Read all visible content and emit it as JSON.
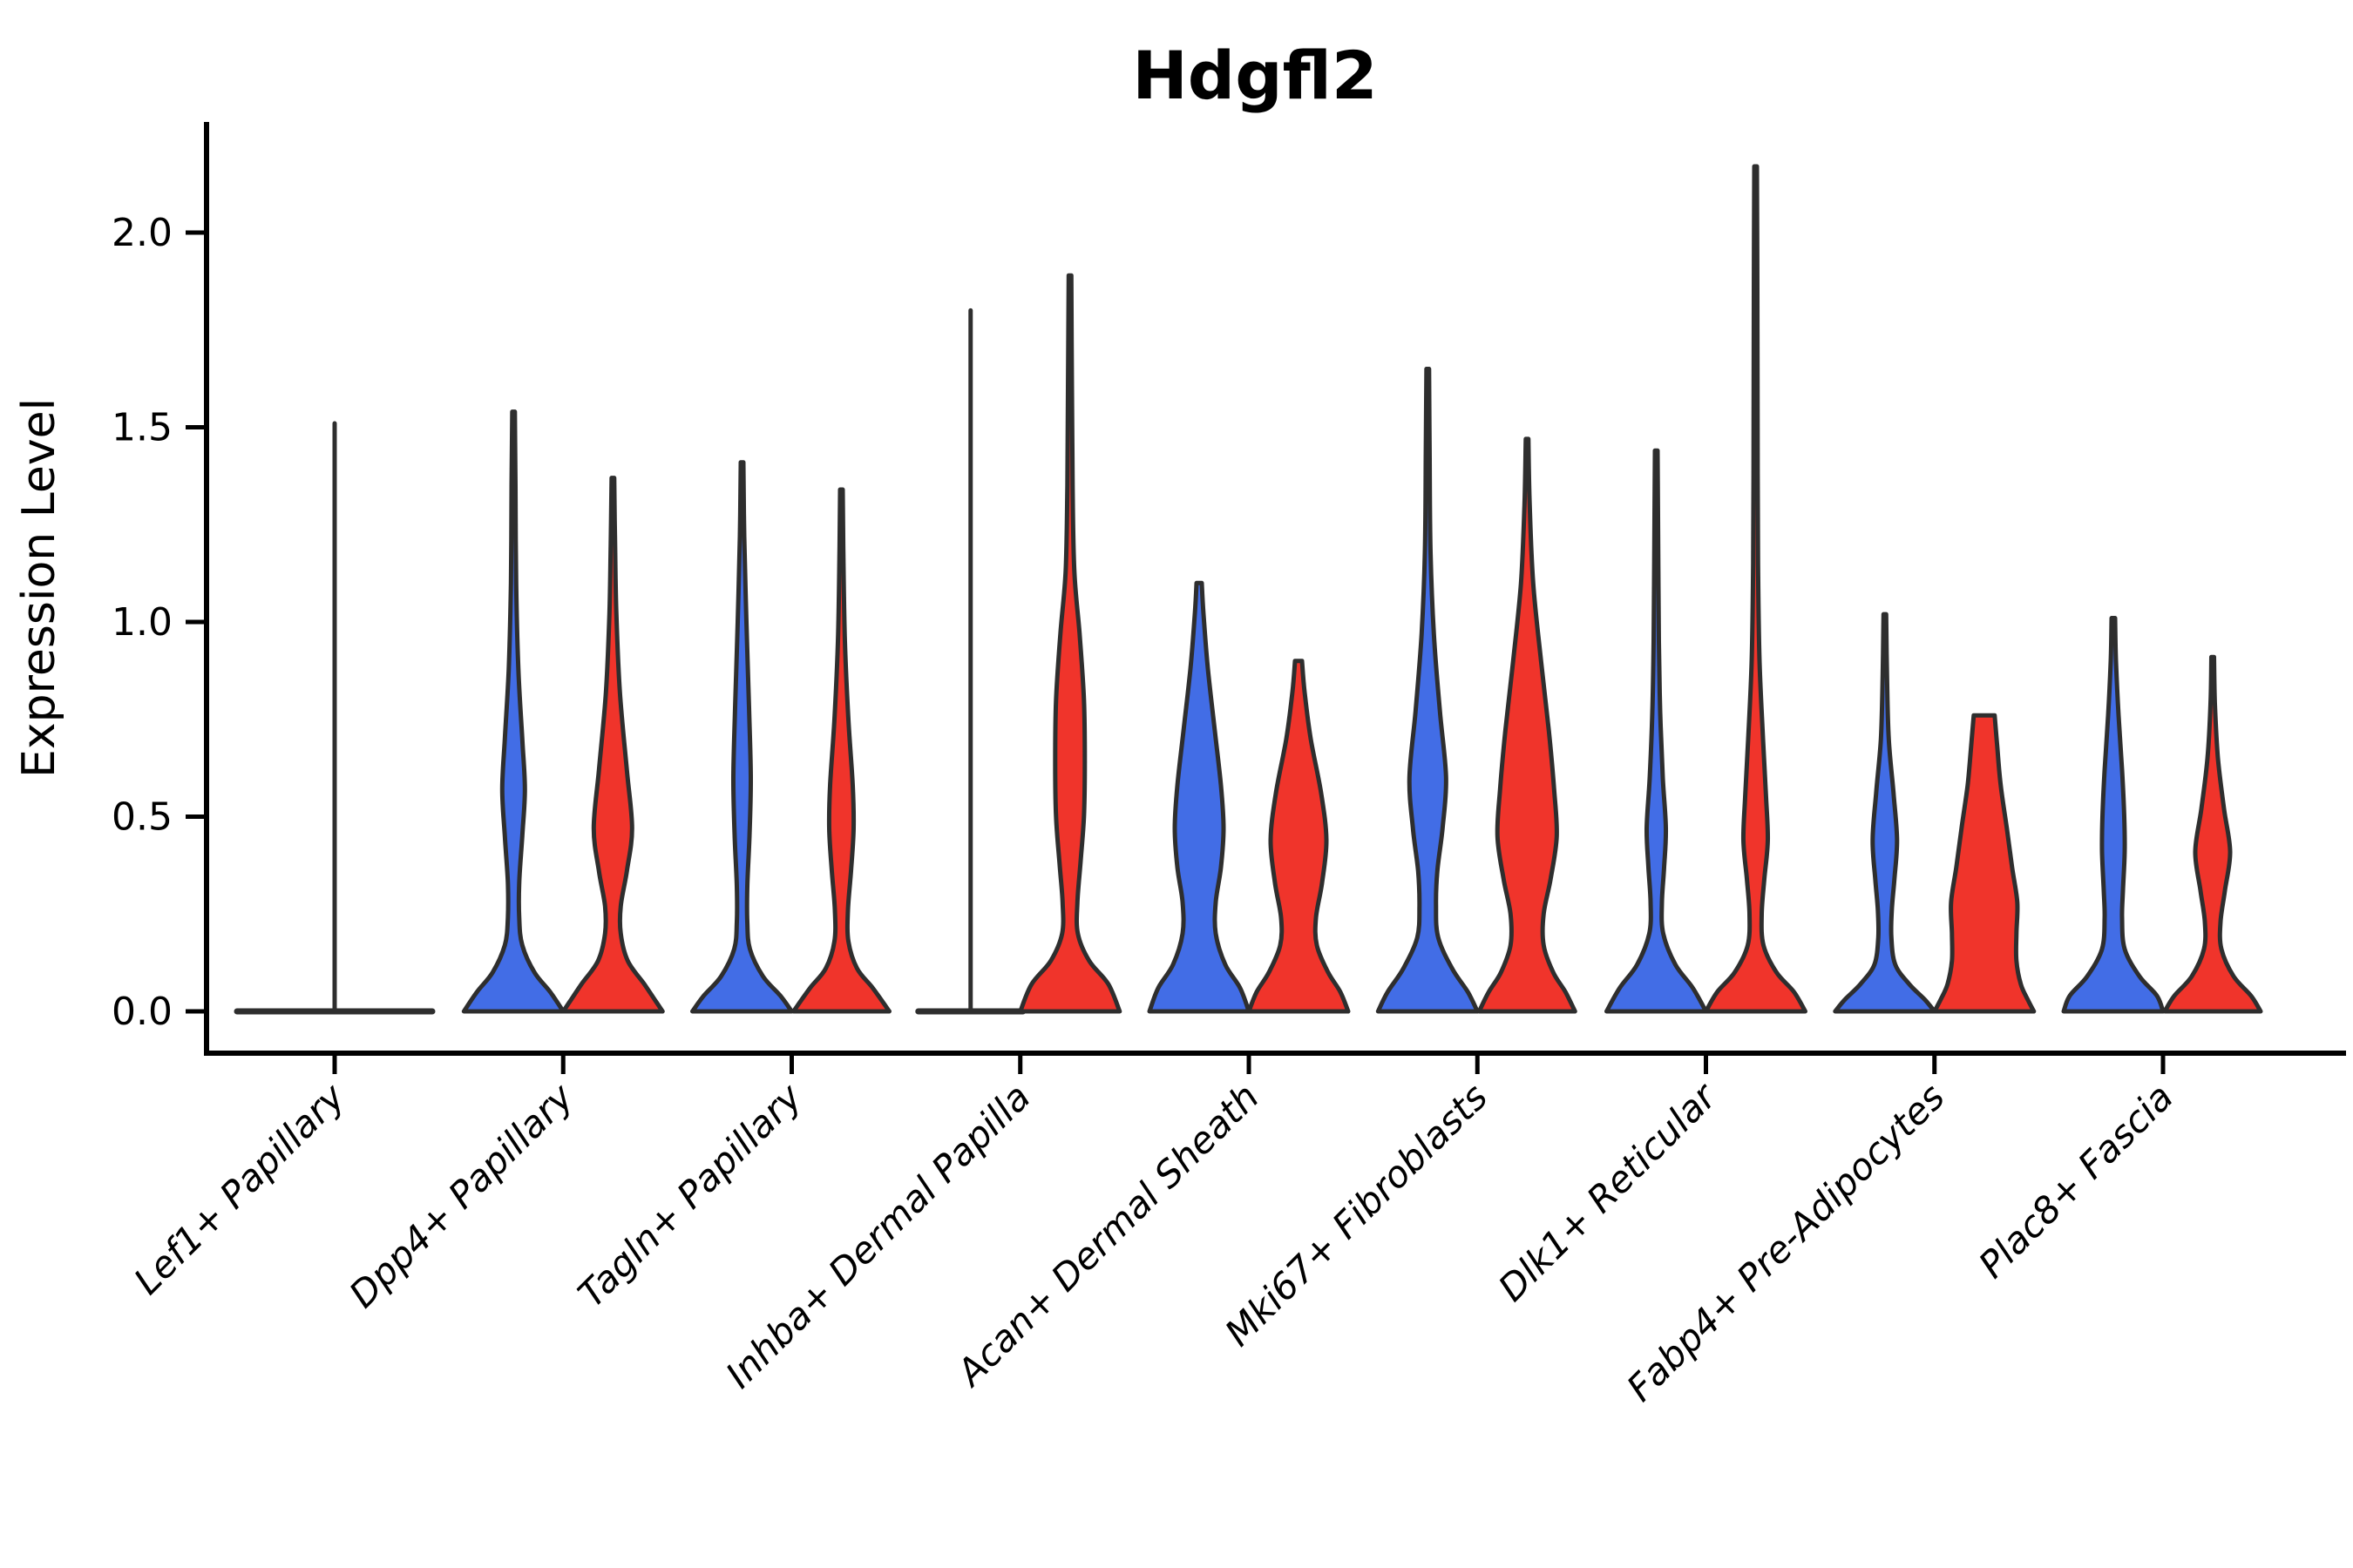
{
  "title": "Hdgfl2",
  "colors": {
    "blue": "#426de6",
    "red": "#f0342b",
    "outline": "#2e2e2e",
    "axis": "#000000"
  },
  "chart_data": {
    "type": "violin",
    "title": "Hdgfl2",
    "ylabel": "Expression Level",
    "ylim": [
      -0.11,
      2.28
    ],
    "grid": false,
    "legend": "none",
    "yticks": [
      {
        "label": "0.0",
        "value": 0.0
      },
      {
        "label": "0.5",
        "value": 0.5
      },
      {
        "label": "1.0",
        "value": 1.0
      },
      {
        "label": "1.5",
        "value": 1.5
      },
      {
        "label": "2.0",
        "value": 2.0
      }
    ],
    "categories": [
      "Lef1+ Papillary",
      "Dpp4+ Papillary",
      "Tagln+ Papillary",
      "Inhba+ Dermal Papilla",
      "Acan+ Dermal Sheath",
      "Mki67+ Fibroblasts",
      "Dlk1+ Reticular",
      "Fabp4+ Pre-Adipocytes",
      "Plac8+ Fascia"
    ],
    "groups": [
      {
        "category": "Lef1+ Papillary",
        "violins": [
          {
            "split": "none",
            "degenerate": true,
            "max": 1.51,
            "flat_halfwidth": 112
          }
        ]
      },
      {
        "category": "Dpp4+ Papillary",
        "violins": [
          {
            "split": "blue",
            "max": 1.54,
            "profile": [
              [
                1.54,
                1.5
              ],
              [
                1.35,
                2.2
              ],
              [
                1.1,
                3.0
              ],
              [
                0.88,
                5.5
              ],
              [
                0.7,
                10
              ],
              [
                0.57,
                13
              ],
              [
                0.45,
                10
              ],
              [
                0.33,
                6.5
              ],
              [
                0.24,
                6.5
              ],
              [
                0.17,
                10
              ],
              [
                0.1,
                24
              ],
              [
                0.05,
                42
              ],
              [
                0,
                57
              ]
            ]
          },
          {
            "split": "red",
            "max": 1.37,
            "profile": [
              [
                1.37,
                1.5
              ],
              [
                1.2,
                2.5
              ],
              [
                1.02,
                4.0
              ],
              [
                0.82,
                8
              ],
              [
                0.62,
                16
              ],
              [
                0.47,
                22
              ],
              [
                0.36,
                16
              ],
              [
                0.27,
                9
              ],
              [
                0.2,
                9
              ],
              [
                0.13,
                17
              ],
              [
                0.07,
                36
              ],
              [
                0.03,
                48
              ],
              [
                0,
                57
              ]
            ]
          }
        ]
      },
      {
        "category": "Tagln+ Papillary",
        "violins": [
          {
            "split": "blue",
            "max": 1.41,
            "profile": [
              [
                1.41,
                1.5
              ],
              [
                1.22,
                2.5
              ],
              [
                1.0,
                5
              ],
              [
                0.78,
                8
              ],
              [
                0.6,
                10
              ],
              [
                0.45,
                8.5
              ],
              [
                0.32,
                6
              ],
              [
                0.23,
                6
              ],
              [
                0.16,
                9
              ],
              [
                0.09,
                24
              ],
              [
                0.04,
                44
              ],
              [
                0,
                57
              ]
            ]
          },
          {
            "split": "red",
            "max": 1.34,
            "profile": [
              [
                1.34,
                1.5
              ],
              [
                1.18,
                2.2
              ],
              [
                0.95,
                4
              ],
              [
                0.75,
                8
              ],
              [
                0.58,
                13
              ],
              [
                0.47,
                14
              ],
              [
                0.36,
                11
              ],
              [
                0.26,
                7.5
              ],
              [
                0.18,
                8
              ],
              [
                0.11,
                18
              ],
              [
                0.06,
                36
              ],
              [
                0,
                55
              ]
            ]
          }
        ]
      },
      {
        "category": "Inhba+ Dermal Papilla",
        "violins": [
          {
            "split": "blue",
            "degenerate": true,
            "max": 1.8,
            "flat_halfwidth": 60
          },
          {
            "split": "red",
            "max": 1.89,
            "profile": [
              [
                1.89,
                1.5
              ],
              [
                1.6,
                2.2
              ],
              [
                1.35,
                3
              ],
              [
                1.13,
                5
              ],
              [
                0.97,
                11
              ],
              [
                0.8,
                16
              ],
              [
                0.64,
                17
              ],
              [
                0.5,
                16
              ],
              [
                0.38,
                12
              ],
              [
                0.28,
                8.5
              ],
              [
                0.2,
                9
              ],
              [
                0.13,
                22
              ],
              [
                0.07,
                44
              ],
              [
                0,
                57
              ]
            ]
          }
        ]
      },
      {
        "category": "Acan+ Dermal Sheath",
        "violins": [
          {
            "split": "blue",
            "max": 1.1,
            "profile": [
              [
                1.1,
                3
              ],
              [
                1.02,
                5
              ],
              [
                0.88,
                10
              ],
              [
                0.72,
                18
              ],
              [
                0.58,
                25
              ],
              [
                0.47,
                28
              ],
              [
                0.37,
                25
              ],
              [
                0.28,
                19
              ],
              [
                0.2,
                19
              ],
              [
                0.12,
                30
              ],
              [
                0.06,
                47
              ],
              [
                0,
                57
              ]
            ]
          },
          {
            "split": "red",
            "max": 0.9,
            "profile": [
              [
                0.9,
                4
              ],
              [
                0.82,
                7
              ],
              [
                0.7,
                14
              ],
              [
                0.56,
                26
              ],
              [
                0.44,
                32
              ],
              [
                0.33,
                27
              ],
              [
                0.24,
                20
              ],
              [
                0.17,
                21
              ],
              [
                0.1,
                34
              ],
              [
                0.05,
                48
              ],
              [
                0,
                57
              ]
            ]
          }
        ]
      },
      {
        "category": "Mki67+ Fibroblasts",
        "violins": [
          {
            "split": "blue",
            "max": 1.65,
            "profile": [
              [
                1.65,
                1.5
              ],
              [
                1.42,
                2.2
              ],
              [
                1.18,
                3.2
              ],
              [
                0.97,
                7
              ],
              [
                0.77,
                14
              ],
              [
                0.6,
                21
              ],
              [
                0.47,
                17
              ],
              [
                0.36,
                11
              ],
              [
                0.27,
                9.5
              ],
              [
                0.19,
                12
              ],
              [
                0.11,
                28
              ],
              [
                0.05,
                46
              ],
              [
                0,
                57
              ]
            ]
          },
          {
            "split": "red",
            "max": 1.47,
            "profile": [
              [
                1.47,
                1.5
              ],
              [
                1.3,
                3
              ],
              [
                1.1,
                7
              ],
              [
                0.9,
                16
              ],
              [
                0.72,
                25
              ],
              [
                0.57,
                31
              ],
              [
                0.45,
                34
              ],
              [
                0.34,
                27
              ],
              [
                0.25,
                19
              ],
              [
                0.17,
                19
              ],
              [
                0.1,
                30
              ],
              [
                0.05,
                44
              ],
              [
                0,
                55
              ]
            ]
          }
        ]
      },
      {
        "category": "Dlk1+ Reticular",
        "violins": [
          {
            "split": "blue",
            "max": 1.44,
            "profile": [
              [
                1.44,
                1.5
              ],
              [
                1.2,
                2.2
              ],
              [
                0.95,
                3
              ],
              [
                0.77,
                4.5
              ],
              [
                0.6,
                7.5
              ],
              [
                0.47,
                11
              ],
              [
                0.37,
                9
              ],
              [
                0.28,
                6.5
              ],
              [
                0.2,
                8
              ],
              [
                0.12,
                22
              ],
              [
                0.06,
                42
              ],
              [
                0,
                57
              ]
            ]
          },
          {
            "split": "red",
            "max": 2.17,
            "profile": [
              [
                2.17,
                1.5
              ],
              [
                1.85,
                2
              ],
              [
                1.5,
                2.3
              ],
              [
                1.15,
                2.8
              ],
              [
                0.9,
                4.5
              ],
              [
                0.7,
                8.5
              ],
              [
                0.55,
                12
              ],
              [
                0.44,
                14
              ],
              [
                0.34,
                10
              ],
              [
                0.25,
                7
              ],
              [
                0.17,
                9
              ],
              [
                0.1,
                24
              ],
              [
                0.05,
                44
              ],
              [
                0,
                57
              ]
            ]
          }
        ]
      },
      {
        "category": "Fabp4+ Pre-Adipocytes",
        "violins": [
          {
            "split": "blue",
            "max": 1.02,
            "profile": [
              [
                1.02,
                1.5
              ],
              [
                0.86,
                2.5
              ],
              [
                0.7,
                4.5
              ],
              [
                0.56,
                10
              ],
              [
                0.44,
                14
              ],
              [
                0.34,
                11
              ],
              [
                0.26,
                8
              ],
              [
                0.19,
                7.5
              ],
              [
                0.12,
                12
              ],
              [
                0.07,
                28
              ],
              [
                0.03,
                46
              ],
              [
                0,
                57
              ]
            ]
          },
          {
            "split": "red",
            "max": 0.76,
            "profile": [
              [
                0.76,
                12
              ],
              [
                0.68,
                15
              ],
              [
                0.58,
                19
              ],
              [
                0.47,
                26
              ],
              [
                0.37,
                32
              ],
              [
                0.28,
                38
              ],
              [
                0.2,
                37
              ],
              [
                0.13,
                37
              ],
              [
                0.07,
                42
              ],
              [
                0.03,
                50
              ],
              [
                0,
                57
              ]
            ]
          }
        ]
      },
      {
        "category": "Plac8+ Fascia",
        "violins": [
          {
            "split": "blue",
            "max": 1.01,
            "profile": [
              [
                1.01,
                2
              ],
              [
                0.9,
                3
              ],
              [
                0.76,
                6
              ],
              [
                0.62,
                10
              ],
              [
                0.5,
                12.5
              ],
              [
                0.41,
                13
              ],
              [
                0.31,
                11
              ],
              [
                0.24,
                10
              ],
              [
                0.16,
                13
              ],
              [
                0.09,
                30
              ],
              [
                0.04,
                50
              ],
              [
                0,
                57
              ]
            ]
          },
          {
            "split": "red",
            "max": 0.91,
            "profile": [
              [
                0.91,
                1.5
              ],
              [
                0.79,
                2.5
              ],
              [
                0.65,
                6
              ],
              [
                0.52,
                13
              ],
              [
                0.41,
                20
              ],
              [
                0.31,
                14
              ],
              [
                0.23,
                9
              ],
              [
                0.16,
                10
              ],
              [
                0.09,
                24
              ],
              [
                0.04,
                44
              ],
              [
                0,
                55
              ]
            ]
          }
        ]
      }
    ]
  }
}
